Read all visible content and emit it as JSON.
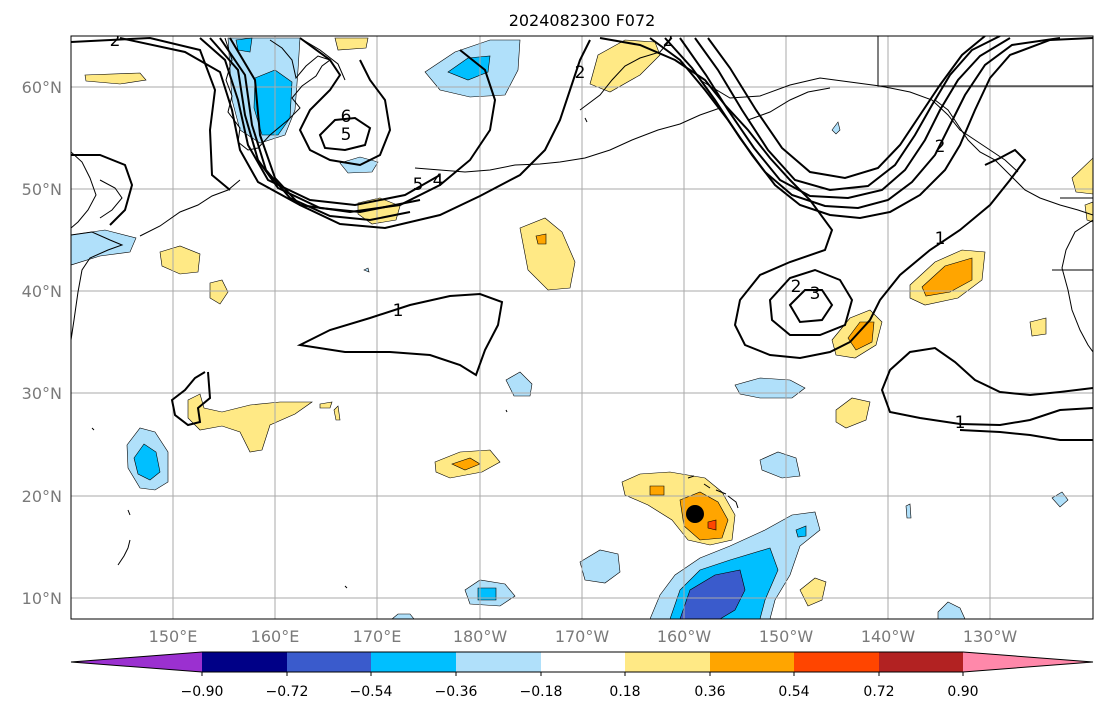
{
  "title": "2024082300 F072",
  "lat_labels": [
    "60°N",
    "50°N",
    "40°N",
    "30°N",
    "20°N",
    "10°N"
  ],
  "lon_labels": [
    "150°E",
    "160°E",
    "170°E",
    "180°W",
    "170°W",
    "160°W",
    "150°W",
    "140°W",
    "130°W"
  ],
  "colorbar": {
    "tick_labels": [
      "−0.90",
      "−0.72",
      "−0.54",
      "−0.36",
      "−0.18",
      "0.18",
      "0.36",
      "0.54",
      "0.72",
      "0.90"
    ],
    "colors": [
      "#9b30d0",
      "#000087",
      "#3a5bcc",
      "#00bfff",
      "#b0e0fa",
      "#ffffff",
      "#ffe985",
      "#ffa500",
      "#ff4500",
      "#b22222",
      "#ff88aa"
    ]
  },
  "contour_labels": [
    "2",
    "2",
    "6",
    "5",
    "5",
    "4",
    "1",
    "2",
    "3",
    "1",
    "1",
    "2",
    "2"
  ],
  "colors": {
    "contour": "#000000",
    "grid": "#aaaaaa",
    "marker": "#000000"
  }
}
